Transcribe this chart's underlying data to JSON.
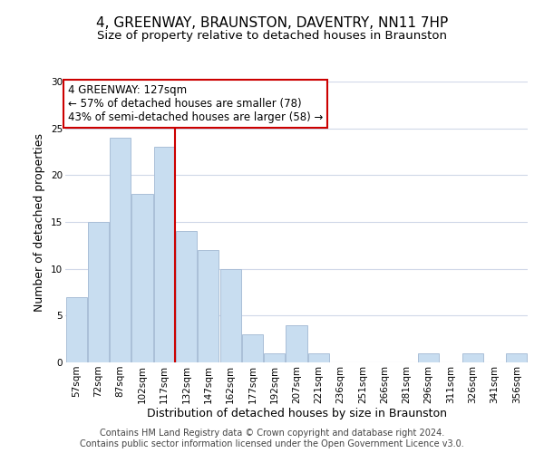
{
  "title": "4, GREENWAY, BRAUNSTON, DAVENTRY, NN11 7HP",
  "subtitle": "Size of property relative to detached houses in Braunston",
  "xlabel": "Distribution of detached houses by size in Braunston",
  "ylabel": "Number of detached properties",
  "bar_labels": [
    "57sqm",
    "72sqm",
    "87sqm",
    "102sqm",
    "117sqm",
    "132sqm",
    "147sqm",
    "162sqm",
    "177sqm",
    "192sqm",
    "207sqm",
    "221sqm",
    "236sqm",
    "251sqm",
    "266sqm",
    "281sqm",
    "296sqm",
    "311sqm",
    "326sqm",
    "341sqm",
    "356sqm"
  ],
  "bar_values": [
    7,
    15,
    24,
    18,
    23,
    14,
    12,
    10,
    3,
    1,
    4,
    1,
    0,
    0,
    0,
    0,
    1,
    0,
    1,
    0,
    1
  ],
  "bar_color": "#c8ddf0",
  "bar_edge_color": "#aabfd8",
  "vline_color": "#cc0000",
  "vline_x": 4.5,
  "ylim": [
    0,
    30
  ],
  "annotation_title": "4 GREENWAY: 127sqm",
  "annotation_line1": "← 57% of detached houses are smaller (78)",
  "annotation_line2": "43% of semi-detached houses are larger (58) →",
  "annotation_box_color": "#ffffff",
  "annotation_box_edge": "#cc0000",
  "footer1": "Contains HM Land Registry data © Crown copyright and database right 2024.",
  "footer2": "Contains public sector information licensed under the Open Government Licence v3.0.",
  "title_fontsize": 11,
  "subtitle_fontsize": 9.5,
  "ylabel_fontsize": 9,
  "xlabel_fontsize": 9,
  "tick_fontsize": 7.5,
  "annotation_fontsize": 8.5,
  "footer_fontsize": 7
}
